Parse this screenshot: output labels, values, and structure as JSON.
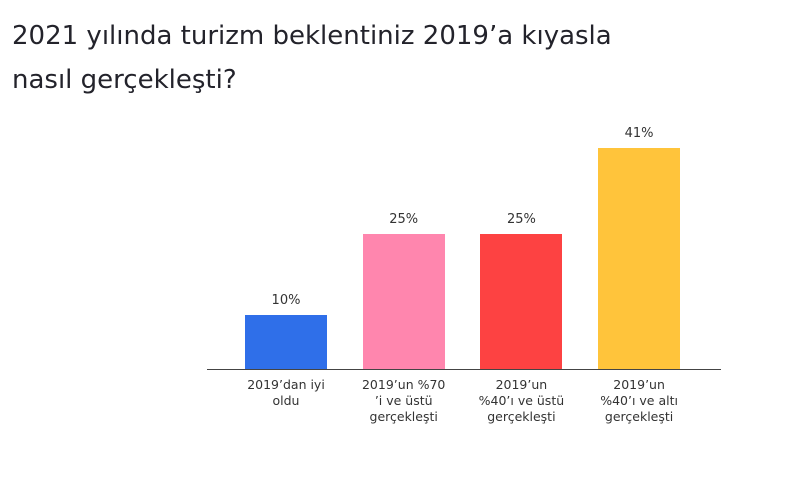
{
  "chart_data": {
    "type": "bar",
    "title": "2021 yılında turizm beklentiniz 2019’a kıyasla nasıl gerçekleşti?",
    "categories": [
      "2019’dan iyi oldu",
      "2019’un %70 ’i ve üstü gerçekleşti",
      "2019’un %40’ı ve üstü gerçekleşti",
      "2019’un %40’ı ve altı gerçekleşti"
    ],
    "values": [
      10,
      25,
      25,
      41
    ],
    "value_labels": [
      "10%",
      "25%",
      "25%",
      "41%"
    ],
    "colors": [
      "#2f6fe9",
      "#ff86ae",
      "#fd4242",
      "#ffc43b"
    ]
  }
}
